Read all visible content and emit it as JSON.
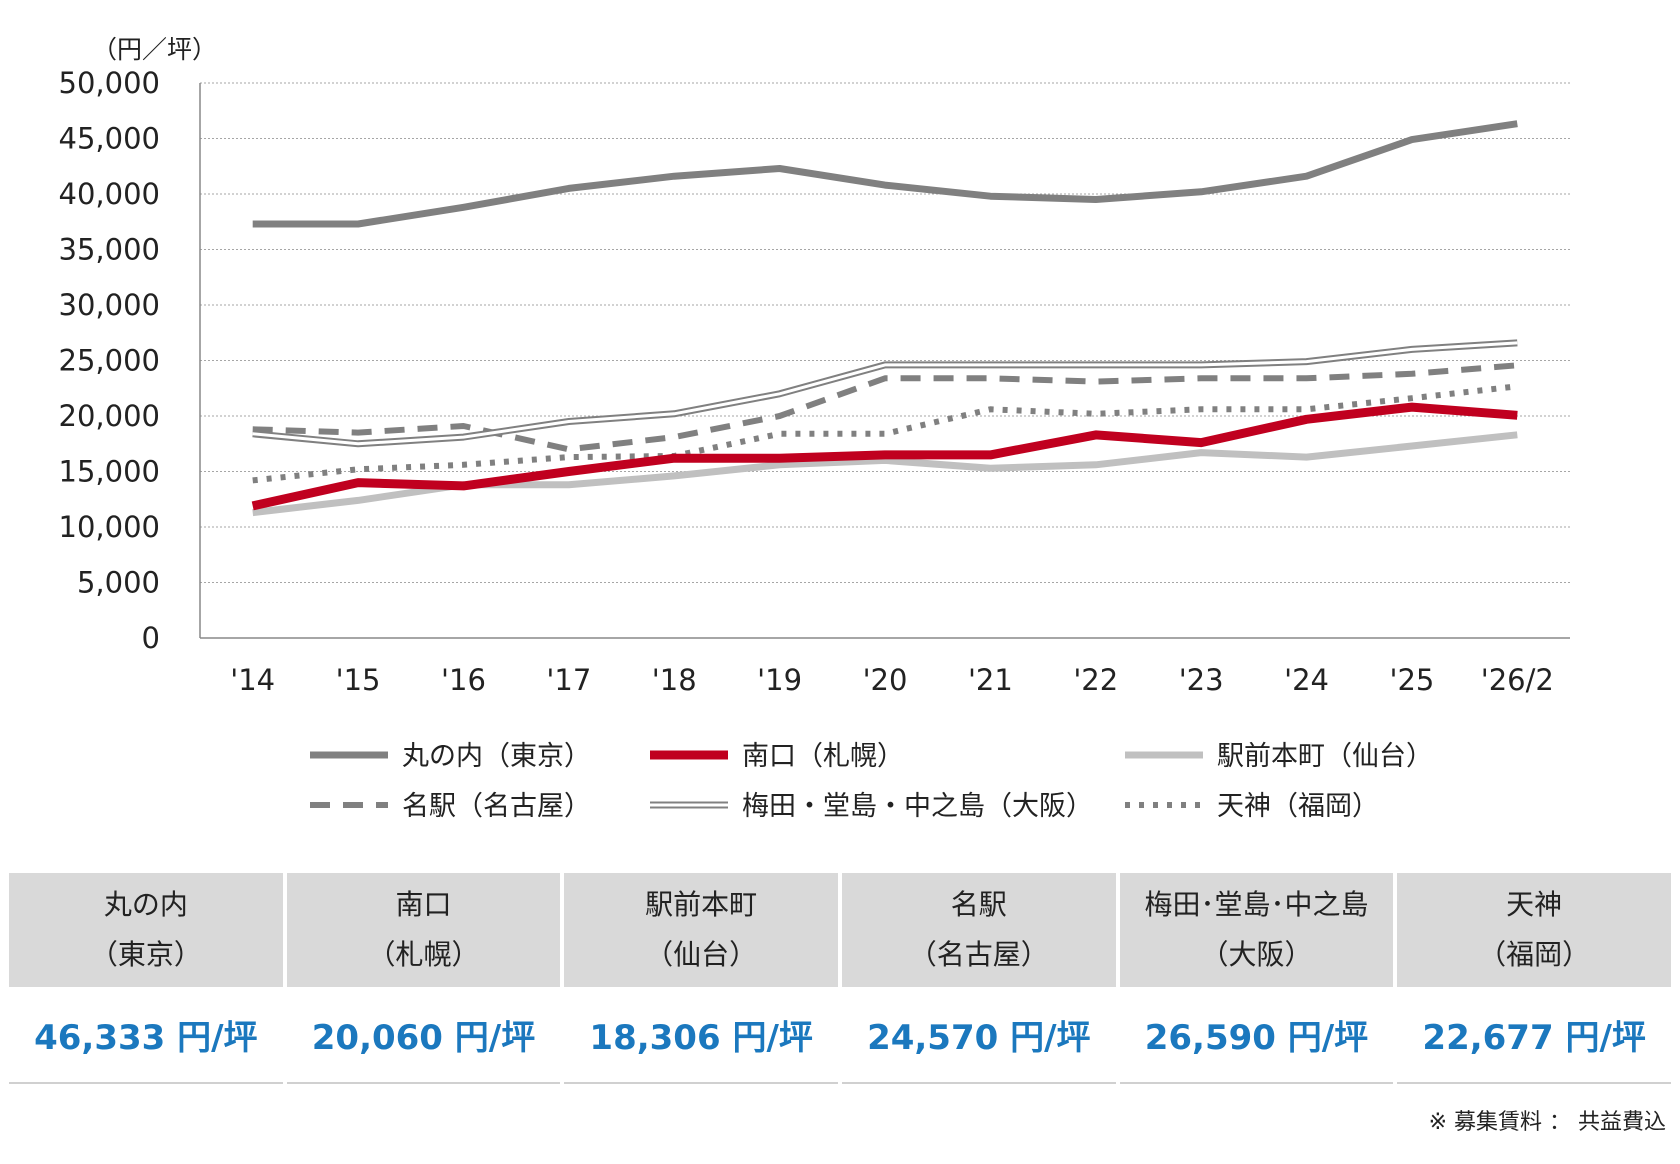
{
  "chart_data": {
    "type": "line",
    "unit_label": "（円／坪）",
    "x": [
      "'14",
      "'15",
      "'16",
      "'17",
      "'18",
      "'19",
      "'20",
      "'21",
      "'22",
      "'23",
      "'24",
      "'25",
      "'26/2"
    ],
    "ylim": [
      0,
      50000
    ],
    "yticks": [
      "50,000",
      "45,000",
      "40,000",
      "35,000",
      "30,000",
      "25,000",
      "20,000",
      "15,000",
      "10,000",
      "5,000",
      "0"
    ],
    "grid": true,
    "legend_position": "bottom",
    "series": [
      {
        "name": "丸の内（東京）",
        "style": "solid-thick",
        "color": "#808080",
        "values": [
          37300,
          37300,
          38800,
          40500,
          41600,
          42300,
          40800,
          39800,
          39500,
          40200,
          41600,
          44900,
          46333
        ]
      },
      {
        "name": "南口（札幌）",
        "style": "solid-bold",
        "color": "#c0001f",
        "values": [
          11900,
          14000,
          13700,
          15000,
          16200,
          16200,
          16500,
          16500,
          18300,
          17600,
          19700,
          20800,
          20060
        ]
      },
      {
        "name": "駅前本町（仙台）",
        "style": "solid-light",
        "color": "#c0c0c0",
        "values": [
          11300,
          12400,
          13800,
          13800,
          14600,
          15600,
          16000,
          15300,
          15600,
          16700,
          16300,
          17300,
          18306
        ]
      },
      {
        "name": "名駅（名古屋）",
        "style": "dashed",
        "color": "#808080",
        "values": [
          18800,
          18500,
          19100,
          17000,
          18100,
          20000,
          23400,
          23400,
          23100,
          23400,
          23400,
          23800,
          24570
        ]
      },
      {
        "name": "梅田・堂島・中之島（大阪）",
        "style": "double",
        "color": "#808080",
        "values": [
          18400,
          17500,
          18100,
          19500,
          20200,
          22000,
          24600,
          24600,
          24600,
          24600,
          24900,
          26000,
          26590
        ]
      },
      {
        "name": "天神（福岡）",
        "style": "dotted",
        "color": "#808080",
        "values": [
          14200,
          15200,
          15600,
          16300,
          16400,
          18400,
          18400,
          20600,
          20200,
          20600,
          20600,
          21600,
          22677
        ]
      }
    ]
  },
  "summary_table": [
    {
      "line1": "丸の内",
      "line2": "（東京）",
      "value": "46,333 円/坪"
    },
    {
      "line1": "南口",
      "line2": "（札幌）",
      "value": "20,060 円/坪"
    },
    {
      "line1": "駅前本町",
      "line2": "（仙台）",
      "value": "18,306 円/坪"
    },
    {
      "line1": "名駅",
      "line2": "（名古屋）",
      "value": "24,570 円/坪"
    },
    {
      "line1": "梅田･堂島･中之島",
      "line2": "（大阪）",
      "value": "26,590 円/坪"
    },
    {
      "line1": "天神",
      "line2": "（福岡）",
      "value": "22,677 円/坪"
    }
  ],
  "colors": {
    "value_text": "#1b78be",
    "header_bg": "#d9d9d9"
  },
  "footnote": "※ 募集賃料 ： 共益費込"
}
